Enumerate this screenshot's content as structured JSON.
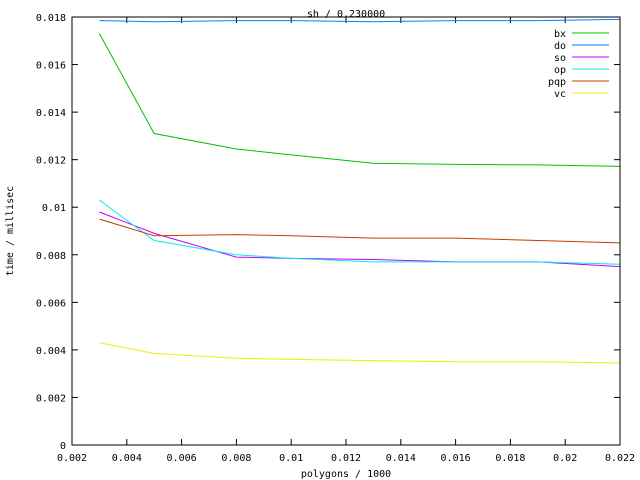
{
  "chart_data": {
    "type": "line",
    "title": "sh / 0.230000",
    "xlabel": "polygons / 1000",
    "ylabel": "time / millisec",
    "xlim": [
      0.002,
      0.022
    ],
    "ylim": [
      0,
      0.018
    ],
    "xticks": [
      "0.002",
      "0.004",
      "0.006",
      "0.008",
      "0.01",
      "0.012",
      "0.014",
      "0.016",
      "0.018",
      "0.02",
      "0.022"
    ],
    "yticks": [
      "0",
      "0.002",
      "0.004",
      "0.006",
      "0.008",
      "0.01",
      "0.012",
      "0.014",
      "0.016",
      "0.018"
    ],
    "grid": false,
    "legend_position": "top-right",
    "x": [
      0.003,
      0.005,
      0.008,
      0.01,
      0.013,
      0.016,
      0.019,
      0.022
    ],
    "series": [
      {
        "name": "bx",
        "color": "#00c000",
        "values": [
          0.0173,
          0.0131,
          0.01245,
          0.0122,
          0.01185,
          0.0118,
          0.01178,
          0.01172
        ]
      },
      {
        "name": "do",
        "color": "#0080ff",
        "values": [
          0.01785,
          0.0178,
          0.01785,
          0.01785,
          0.0178,
          0.01785,
          0.01785,
          0.0179
        ]
      },
      {
        "name": "so",
        "color": "#c000ff",
        "values": [
          0.0098,
          0.0089,
          0.0079,
          0.00785,
          0.0078,
          0.0077,
          0.0077,
          0.0075
        ]
      },
      {
        "name": "op",
        "color": "#00eeee",
        "values": [
          0.0103,
          0.0086,
          0.008,
          0.00785,
          0.0077,
          0.0077,
          0.0077,
          0.0076
        ]
      },
      {
        "name": "pqp",
        "color": "#c04000",
        "values": [
          0.0095,
          0.0088,
          0.00885,
          0.0088,
          0.0087,
          0.0087,
          0.0086,
          0.0085
        ]
      },
      {
        "name": "vc",
        "color": "#eeee00",
        "values": [
          0.0043,
          0.00385,
          0.00365,
          0.0036,
          0.00355,
          0.0035,
          0.0035,
          0.00345
        ]
      }
    ]
  }
}
